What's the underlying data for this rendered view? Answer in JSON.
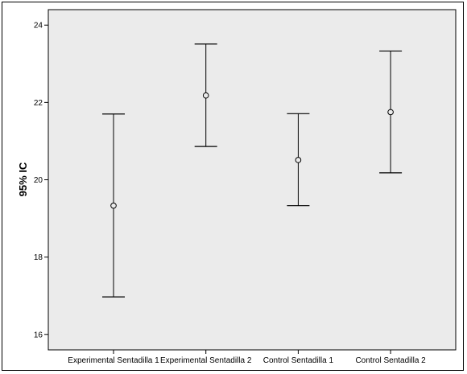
{
  "chart_data": {
    "type": "errorbar",
    "title": "",
    "xlabel": "",
    "ylabel": "95% IC",
    "ylim": [
      15.6,
      24.4
    ],
    "yticks": [
      16,
      18,
      20,
      22,
      24
    ],
    "categories": [
      "Experimental Sentadilla 1",
      "Experimental Sentadilla 2",
      "Control Sentadilla 1",
      "Control Sentadilla 2"
    ],
    "series": [
      {
        "mean": [
          19.33,
          22.18,
          20.51,
          21.75
        ],
        "lower": [
          16.97,
          20.86,
          19.33,
          20.18
        ],
        "upper": [
          21.7,
          23.51,
          21.71,
          23.33
        ]
      }
    ],
    "grid": false,
    "legend": "none",
    "colors": {
      "plot_background": "#ebebeb",
      "marks": "#000000"
    }
  }
}
